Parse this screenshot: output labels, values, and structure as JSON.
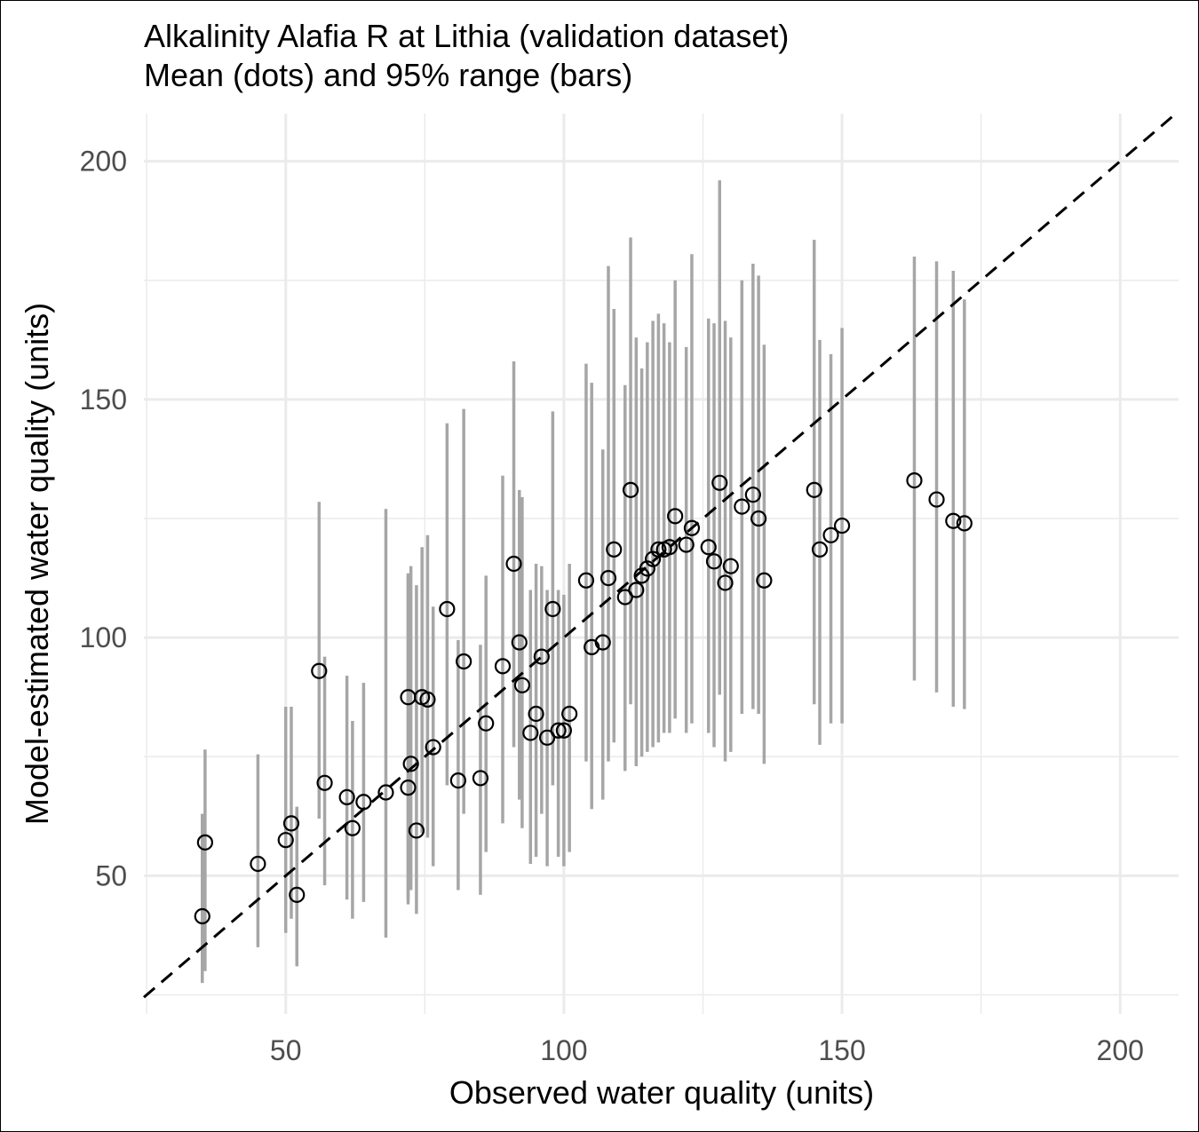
{
  "chart_data": {
    "type": "scatter",
    "title": "Alkalinity Alafia R at Lithia (validation dataset)",
    "subtitle": "Mean (dots) and 95% range (bars)",
    "xlabel": "Observed water quality (units)",
    "ylabel": "Model-estimated water quality (units)",
    "xlim": [
      24.5,
      210.5
    ],
    "ylim": [
      21,
      210
    ],
    "x_ticks": [
      50,
      100,
      150,
      200
    ],
    "x_tick_labels": [
      "50",
      "100",
      "150",
      "200"
    ],
    "y_ticks": [
      50,
      100,
      150,
      200
    ],
    "y_tick_labels": [
      "50",
      "100",
      "150",
      "200"
    ],
    "grid": true,
    "reference_line": {
      "style": "dashed",
      "slope": 1,
      "intercept": 0
    },
    "colors": {
      "bars": "#a6a6a6",
      "points": "#000000",
      "grid": "#ebebeb",
      "reference": "#000000"
    },
    "points": [
      {
        "x": 35,
        "mean": 41.5,
        "lo": 27.5,
        "hi": 63
      },
      {
        "x": 35.5,
        "mean": 57,
        "lo": 30,
        "hi": 76.5
      },
      {
        "x": 45,
        "mean": 52.5,
        "lo": 35,
        "hi": 75.5
      },
      {
        "x": 50,
        "mean": 57.5,
        "lo": 38,
        "hi": 85.5
      },
      {
        "x": 51,
        "mean": 61,
        "lo": 41,
        "hi": 85.5
      },
      {
        "x": 52,
        "mean": 46,
        "lo": 31,
        "hi": 64.5
      },
      {
        "x": 56,
        "mean": 93,
        "lo": 62,
        "hi": 128.5
      },
      {
        "x": 57,
        "mean": 69.5,
        "lo": 48,
        "hi": 96
      },
      {
        "x": 61,
        "mean": 66.5,
        "lo": 45,
        "hi": 92
      },
      {
        "x": 62,
        "mean": 60,
        "lo": 41,
        "hi": 82.5
      },
      {
        "x": 64,
        "mean": 65.5,
        "lo": 44.5,
        "hi": 90.5
      },
      {
        "x": 68,
        "mean": 67.5,
        "lo": 37,
        "hi": 127
      },
      {
        "x": 72,
        "mean": 87.5,
        "lo": 44,
        "hi": 113.5
      },
      {
        "x": 72,
        "mean": 68.5,
        "lo": 45,
        "hi": 113
      },
      {
        "x": 72.5,
        "mean": 73.5,
        "lo": 47,
        "hi": 115
      },
      {
        "x": 73.5,
        "mean": 59.5,
        "lo": 42,
        "hi": 111
      },
      {
        "x": 74.5,
        "mean": 87.5,
        "lo": 59,
        "hi": 119
      },
      {
        "x": 75.5,
        "mean": 87,
        "lo": 58,
        "hi": 121.5
      },
      {
        "x": 76.5,
        "mean": 77,
        "lo": 52,
        "hi": 106.5
      },
      {
        "x": 79,
        "mean": 106,
        "lo": 69,
        "hi": 145
      },
      {
        "x": 81,
        "mean": 70,
        "lo": 47,
        "hi": 99.5
      },
      {
        "x": 82,
        "mean": 95,
        "lo": 63,
        "hi": 148
      },
      {
        "x": 85,
        "mean": 70.5,
        "lo": 46,
        "hi": 98.5
      },
      {
        "x": 86,
        "mean": 82,
        "lo": 55,
        "hi": 113
      },
      {
        "x": 89,
        "mean": 94,
        "lo": 61,
        "hi": 134
      },
      {
        "x": 91,
        "mean": 115.5,
        "lo": 77,
        "hi": 158
      },
      {
        "x": 92,
        "mean": 99,
        "lo": 66,
        "hi": 131
      },
      {
        "x": 92.5,
        "mean": 90,
        "lo": 60,
        "hi": 129.5
      },
      {
        "x": 94,
        "mean": 80,
        "lo": 52.5,
        "hi": 110
      },
      {
        "x": 95,
        "mean": 84,
        "lo": 54,
        "hi": 115.5
      },
      {
        "x": 96,
        "mean": 96,
        "lo": 63,
        "hi": 115
      },
      {
        "x": 97,
        "mean": 79,
        "lo": 52,
        "hi": 110
      },
      {
        "x": 98,
        "mean": 106,
        "lo": 69,
        "hi": 147.5
      },
      {
        "x": 99,
        "mean": 80.5,
        "lo": 54,
        "hi": 110
      },
      {
        "x": 100,
        "mean": 80.5,
        "lo": 52,
        "hi": 109
      },
      {
        "x": 101,
        "mean": 84,
        "lo": 55,
        "hi": 115.5
      },
      {
        "x": 104,
        "mean": 112,
        "lo": 74,
        "hi": 157.5
      },
      {
        "x": 105,
        "mean": 98,
        "lo": 64,
        "hi": 153.5
      },
      {
        "x": 107,
        "mean": 99,
        "lo": 66,
        "hi": 139.5
      },
      {
        "x": 108,
        "mean": 112.5,
        "lo": 74,
        "hi": 178
      },
      {
        "x": 109,
        "mean": 118.5,
        "lo": 78,
        "hi": 169
      },
      {
        "x": 111,
        "mean": 108.5,
        "lo": 72,
        "hi": 153
      },
      {
        "x": 112,
        "mean": 131,
        "lo": 86,
        "hi": 184
      },
      {
        "x": 113,
        "mean": 110,
        "lo": 73,
        "hi": 163
      },
      {
        "x": 114,
        "mean": 113,
        "lo": 75,
        "hi": 156.5
      },
      {
        "x": 115,
        "mean": 114.5,
        "lo": 76,
        "hi": 162
      },
      {
        "x": 116,
        "mean": 116.5,
        "lo": 77,
        "hi": 166.5
      },
      {
        "x": 117,
        "mean": 118.5,
        "lo": 78,
        "hi": 168
      },
      {
        "x": 118,
        "mean": 118.5,
        "lo": 80,
        "hi": 166
      },
      {
        "x": 119,
        "mean": 119,
        "lo": 80,
        "hi": 162
      },
      {
        "x": 120,
        "mean": 125.5,
        "lo": 83,
        "hi": 175
      },
      {
        "x": 122,
        "mean": 119.5,
        "lo": 80,
        "hi": 161
      },
      {
        "x": 123,
        "mean": 123,
        "lo": 82,
        "hi": 180.5
      },
      {
        "x": 126,
        "mean": 119,
        "lo": 80,
        "hi": 167
      },
      {
        "x": 127,
        "mean": 116,
        "lo": 77,
        "hi": 166
      },
      {
        "x": 128,
        "mean": 132.5,
        "lo": 88,
        "hi": 196
      },
      {
        "x": 129,
        "mean": 111.5,
        "lo": 74,
        "hi": 166.5
      },
      {
        "x": 130,
        "mean": 115,
        "lo": 76,
        "hi": 163
      },
      {
        "x": 132,
        "mean": 127.5,
        "lo": 84,
        "hi": 175
      },
      {
        "x": 134,
        "mean": 130,
        "lo": 85,
        "hi": 178.5
      },
      {
        "x": 135,
        "mean": 125,
        "lo": 84,
        "hi": 176
      },
      {
        "x": 136,
        "mean": 112,
        "lo": 73.5,
        "hi": 161.5
      },
      {
        "x": 145,
        "mean": 131,
        "lo": 86,
        "hi": 183.5
      },
      {
        "x": 146,
        "mean": 118.5,
        "lo": 77.5,
        "hi": 162.5
      },
      {
        "x": 148,
        "mean": 121.5,
        "lo": 82,
        "hi": 159.5
      },
      {
        "x": 150,
        "mean": 123.5,
        "lo": 82,
        "hi": 165
      },
      {
        "x": 163,
        "mean": 133,
        "lo": 91,
        "hi": 180
      },
      {
        "x": 167,
        "mean": 129,
        "lo": 88.5,
        "hi": 179
      },
      {
        "x": 170,
        "mean": 124.5,
        "lo": 85.5,
        "hi": 177
      },
      {
        "x": 172,
        "mean": 124,
        "lo": 85,
        "hi": 171
      }
    ]
  }
}
